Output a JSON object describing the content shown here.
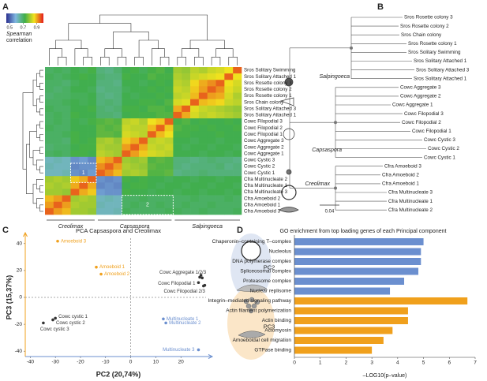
{
  "chart_data": [
    {
      "panel": "A",
      "type": "heatmap",
      "rows": [
        "Sros Solitary Swimming",
        "Sros Solitary Attached 1",
        "Sros Rosette colony 3",
        "Sros Rosette colony 2",
        "Sros Rosette colony 1",
        "Sros Chain colony",
        "Sros Solitary Attached 3",
        "Sros Solitary Attached 1",
        "Cowc Filopodial 3",
        "Cowc Filopodial 2",
        "Cowc Filopodial 1",
        "Cowc Aggregate 3",
        "Cowc Aggregate 2",
        "Cowc Aggregate 1",
        "Cowc Cystic 3",
        "Cowc Cystic 2",
        "Cowc Cystic 1",
        "Cfra Multinucleate 2",
        "Cfra Multinucleate 1",
        "Cfra Multinucleate 3",
        "Cfra Amoeboid 2",
        "Cfra Amoeboid 1",
        "Cfra Amoeboid 3"
      ],
      "values": [
        [
          0.7,
          0.71,
          0.7,
          0.72,
          0.71,
          0.73,
          0.68,
          0.67,
          0.69,
          0.72,
          0.73,
          0.71,
          0.73,
          0.74,
          0.72,
          0.8,
          0.79,
          0.82,
          0.81,
          0.83,
          0.84,
          0.86,
          0.95
        ],
        [
          0.71,
          0.7,
          0.71,
          0.72,
          0.73,
          0.72,
          0.69,
          0.68,
          0.68,
          0.73,
          0.72,
          0.72,
          0.74,
          0.73,
          0.73,
          0.81,
          0.8,
          0.83,
          0.84,
          0.85,
          0.86,
          0.95,
          0.86
        ],
        [
          0.7,
          0.7,
          0.69,
          0.71,
          0.72,
          0.72,
          0.68,
          0.68,
          0.67,
          0.72,
          0.72,
          0.71,
          0.72,
          0.73,
          0.72,
          0.82,
          0.81,
          0.87,
          0.9,
          0.92,
          0.95,
          0.86,
          0.84
        ],
        [
          0.7,
          0.69,
          0.7,
          0.72,
          0.72,
          0.71,
          0.67,
          0.68,
          0.68,
          0.71,
          0.72,
          0.72,
          0.73,
          0.72,
          0.73,
          0.83,
          0.82,
          0.88,
          0.91,
          0.95,
          0.92,
          0.85,
          0.83
        ],
        [
          0.69,
          0.7,
          0.7,
          0.71,
          0.71,
          0.72,
          0.68,
          0.67,
          0.68,
          0.72,
          0.71,
          0.72,
          0.72,
          0.73,
          0.72,
          0.82,
          0.83,
          0.89,
          0.95,
          0.91,
          0.9,
          0.84,
          0.81
        ],
        [
          0.7,
          0.7,
          0.71,
          0.72,
          0.71,
          0.72,
          0.68,
          0.69,
          0.68,
          0.72,
          0.72,
          0.73,
          0.73,
          0.72,
          0.74,
          0.84,
          0.85,
          0.95,
          0.89,
          0.88,
          0.87,
          0.83,
          0.82
        ],
        [
          0.71,
          0.7,
          0.7,
          0.72,
          0.72,
          0.73,
          0.69,
          0.68,
          0.69,
          0.73,
          0.73,
          0.72,
          0.74,
          0.74,
          0.73,
          0.9,
          0.95,
          0.85,
          0.83,
          0.82,
          0.81,
          0.8,
          0.79
        ],
        [
          0.7,
          0.71,
          0.7,
          0.73,
          0.72,
          0.72,
          0.69,
          0.69,
          0.68,
          0.72,
          0.73,
          0.73,
          0.73,
          0.74,
          0.74,
          0.95,
          0.9,
          0.84,
          0.82,
          0.83,
          0.82,
          0.81,
          0.8
        ],
        [
          0.7,
          0.71,
          0.7,
          0.72,
          0.71,
          0.73,
          0.74,
          0.75,
          0.74,
          0.82,
          0.83,
          0.81,
          0.86,
          0.88,
          0.95,
          0.73,
          0.74,
          0.72,
          0.73,
          0.72,
          0.72,
          0.73,
          0.72
        ],
        [
          0.71,
          0.7,
          0.7,
          0.72,
          0.72,
          0.72,
          0.75,
          0.74,
          0.75,
          0.83,
          0.82,
          0.82,
          0.89,
          0.95,
          0.88,
          0.74,
          0.73,
          0.73,
          0.72,
          0.73,
          0.72,
          0.72,
          0.73
        ],
        [
          0.7,
          0.7,
          0.71,
          0.73,
          0.72,
          0.72,
          0.75,
          0.75,
          0.74,
          0.84,
          0.83,
          0.82,
          0.95,
          0.89,
          0.86,
          0.73,
          0.73,
          0.72,
          0.72,
          0.72,
          0.73,
          0.72,
          0.72
        ],
        [
          0.7,
          0.7,
          0.69,
          0.73,
          0.72,
          0.73,
          0.8,
          0.81,
          0.79,
          0.88,
          0.9,
          0.95,
          0.82,
          0.83,
          0.82,
          0.72,
          0.72,
          0.71,
          0.72,
          0.72,
          0.71,
          0.72,
          0.72
        ],
        [
          0.69,
          0.7,
          0.7,
          0.72,
          0.73,
          0.73,
          0.81,
          0.8,
          0.8,
          0.91,
          0.95,
          0.9,
          0.83,
          0.82,
          0.83,
          0.72,
          0.71,
          0.72,
          0.72,
          0.71,
          0.72,
          0.72,
          0.71
        ],
        [
          0.7,
          0.71,
          0.7,
          0.73,
          0.73,
          0.72,
          0.82,
          0.81,
          0.8,
          0.95,
          0.91,
          0.88,
          0.84,
          0.83,
          0.82,
          0.72,
          0.72,
          0.72,
          0.71,
          0.72,
          0.72,
          0.71,
          0.72
        ],
        [
          0.62,
          0.63,
          0.62,
          0.55,
          0.56,
          0.54,
          0.89,
          0.91,
          0.95,
          0.8,
          0.79,
          0.8,
          0.74,
          0.75,
          0.74,
          0.68,
          0.68,
          0.67,
          0.68,
          0.69,
          0.68,
          0.68,
          0.67
        ],
        [
          0.63,
          0.62,
          0.62,
          0.54,
          0.55,
          0.55,
          0.92,
          0.95,
          0.91,
          0.81,
          0.8,
          0.79,
          0.75,
          0.74,
          0.74,
          0.68,
          0.67,
          0.68,
          0.68,
          0.68,
          0.69,
          0.67,
          0.68
        ],
        [
          0.62,
          0.62,
          0.63,
          0.55,
          0.54,
          0.56,
          0.95,
          0.92,
          0.89,
          0.8,
          0.81,
          0.8,
          0.74,
          0.74,
          0.75,
          0.67,
          0.68,
          0.68,
          0.69,
          0.68,
          0.68,
          0.68,
          0.68
        ],
        [
          0.8,
          0.81,
          0.8,
          0.88,
          0.9,
          0.95,
          0.55,
          0.54,
          0.55,
          0.73,
          0.72,
          0.73,
          0.72,
          0.72,
          0.71,
          0.72,
          0.72,
          0.71,
          0.72,
          0.72,
          0.71,
          0.72,
          0.72
        ],
        [
          0.81,
          0.8,
          0.81,
          0.9,
          0.95,
          0.9,
          0.54,
          0.55,
          0.54,
          0.72,
          0.73,
          0.73,
          0.72,
          0.71,
          0.72,
          0.72,
          0.71,
          0.72,
          0.72,
          0.71,
          0.72,
          0.72,
          0.71
        ],
        [
          0.8,
          0.8,
          0.79,
          0.95,
          0.9,
          0.88,
          0.56,
          0.55,
          0.55,
          0.73,
          0.72,
          0.72,
          0.71,
          0.72,
          0.72,
          0.71,
          0.72,
          0.72,
          0.71,
          0.72,
          0.72,
          0.71,
          0.72
        ],
        [
          0.89,
          0.91,
          0.95,
          0.8,
          0.81,
          0.8,
          0.62,
          0.63,
          0.62,
          0.7,
          0.7,
          0.71,
          0.7,
          0.7,
          0.7,
          0.7,
          0.7,
          0.71,
          0.7,
          0.7,
          0.7,
          0.71,
          0.7
        ],
        [
          0.91,
          0.95,
          0.91,
          0.81,
          0.8,
          0.8,
          0.63,
          0.62,
          0.62,
          0.7,
          0.71,
          0.7,
          0.7,
          0.71,
          0.7,
          0.7,
          0.71,
          0.7,
          0.7,
          0.71,
          0.7,
          0.7,
          0.7
        ],
        [
          0.95,
          0.91,
          0.89,
          0.8,
          0.8,
          0.79,
          0.62,
          0.62,
          0.63,
          0.71,
          0.7,
          0.7,
          0.7,
          0.7,
          0.71,
          0.71,
          0.7,
          0.7,
          0.71,
          0.7,
          0.7,
          0.7,
          0.71
        ]
      ],
      "column_groups": [
        "Creolimax",
        "Capsaspora",
        "Salpingoeca"
      ],
      "zlim": [
        0.45,
        1.0
      ],
      "colormap": [
        "#2b2f8f",
        "#80b7e0",
        "#3fae49",
        "#f2e21d",
        "#e31a1c"
      ],
      "colorbar_ticks": [
        0.5,
        0.7,
        0.9
      ],
      "colorbar_label": [
        "Spearman",
        "correlation"
      ],
      "boxes": [
        "1",
        "2"
      ]
    },
    {
      "panel": "B",
      "type": "tree",
      "clades": [
        {
          "name": "Salpingoeca",
          "leaves": [
            "Sros Rosette colony 3",
            "Sros Rosette colony 2",
            "Sros Chain colony",
            "Sros Rosette colony 1",
            "Sros Solitary Swimming",
            "Sros Solitary Attached 1",
            "Sros Solitary Attached 3",
            "Sros Solitary Attached 1"
          ]
        },
        {
          "name": "Capsaspora",
          "leaves": [
            "Cowc Aggregate 3",
            "Cowc Aggregate 2",
            "Cowc Aggregate 1",
            "Cowc Filopodial 3",
            "Cowc Filopodial 2",
            "Cowc Filopodial 1",
            "Cowc Cystic 3",
            "Cowc Cystic 2",
            "Cowc Cystic 1"
          ]
        },
        {
          "name": "Creolimax",
          "leaves": [
            "Cfra Amoeboid 3",
            "Cfra Amoeboid 2",
            "Cfra Amoeboid 1",
            "Cfra Multinucleate 3",
            "Cfra Multinucleate 1",
            "Cfra Multinucleate 2"
          ]
        }
      ],
      "scale_label": "0.04"
    },
    {
      "panel": "C",
      "type": "scatter",
      "title": "PCA Capsaspora and Creolimax",
      "xlabel": "PC2 (20,74%)",
      "ylabel": "PC3 (15,37%)",
      "xlim": [
        -42,
        30
      ],
      "ylim": [
        -44,
        44
      ],
      "xticks": [
        -40,
        -30,
        -20,
        -10,
        0,
        10,
        20
      ],
      "yticks": [
        -40,
        -20,
        0,
        20,
        40
      ],
      "points": [
        {
          "label": "Amoeboid 3",
          "color": "#f0a01c",
          "x": [
            -29.1
          ],
          "y": [
            41.8
          ]
        },
        {
          "label": "Amoeboid 1",
          "color": "#f0a01c",
          "x": [
            -13.7
          ],
          "y": [
            22.5
          ]
        },
        {
          "label": "Amoeboid 2",
          "color": "#f0a01c",
          "x": [
            -11.8
          ],
          "y": [
            17.3
          ]
        },
        {
          "label": "Cowc Aggregate 1/2/3",
          "color": "#333333",
          "x": [
            27.5,
            28,
            28.5
          ],
          "y": [
            15,
            16.5,
            14.5
          ]
        },
        {
          "label": "Cowc Filopodial 1",
          "color": "#333333",
          "x": [
            27
          ],
          "y": [
            11
          ]
        },
        {
          "label": "Cowc Filopodial 2/3",
          "color": "#333333",
          "x": [
            29,
            29.5
          ],
          "y": [
            8.5,
            9
          ]
        },
        {
          "label": "Cowc cystic 1",
          "color": "#333333",
          "x": [
            -30
          ],
          "y": [
            -15.5
          ]
        },
        {
          "label": "Cowc cystic 2",
          "color": "#333333",
          "x": [
            -31
          ],
          "y": [
            -16.7
          ]
        },
        {
          "label": "Cowc cystic 3",
          "color": "#333333",
          "x": [
            -34.8
          ],
          "y": [
            -19
          ]
        },
        {
          "label": "Multinucleate 1",
          "color": "#6b8fcf",
          "x": [
            13
          ],
          "y": [
            -16
          ]
        },
        {
          "label": "Multinucleate 2",
          "color": "#6b8fcf",
          "x": [
            14
          ],
          "y": [
            -19
          ]
        },
        {
          "label": "Multinucleate 3",
          "color": "#6b8fcf",
          "x": [
            27
          ],
          "y": [
            -39
          ]
        }
      ]
    },
    {
      "panel": "D",
      "type": "bar",
      "title": "GO enrichment from top loading genes of each Principal component",
      "xlabel": "–LOG10(p–value)",
      "xlim": [
        0,
        7
      ],
      "xticks": [
        0,
        1,
        2,
        3,
        4,
        5,
        6,
        7
      ],
      "groups": [
        {
          "name": "PC2",
          "color": "#6b8fcf",
          "categories": [
            "Chaperonin–containing T–complex",
            "Nucleolus",
            "DNA polymerase complex",
            "Spliceosomal complex",
            "Proteasome complex",
            "Nuclear replisome"
          ],
          "values": [
            5.0,
            4.9,
            4.9,
            4.8,
            4.25,
            3.7
          ]
        },
        {
          "name": "PC3",
          "color": "#f0a01c",
          "categories": [
            "Integrin–mediated signaling pathway",
            "Actin filament polymerization",
            "Actin binding",
            "Actomyosin",
            "Amoeboidal cell migration",
            "GTPase binding"
          ],
          "values": [
            6.7,
            4.4,
            4.4,
            3.8,
            3.45,
            3.0
          ]
        }
      ]
    }
  ]
}
